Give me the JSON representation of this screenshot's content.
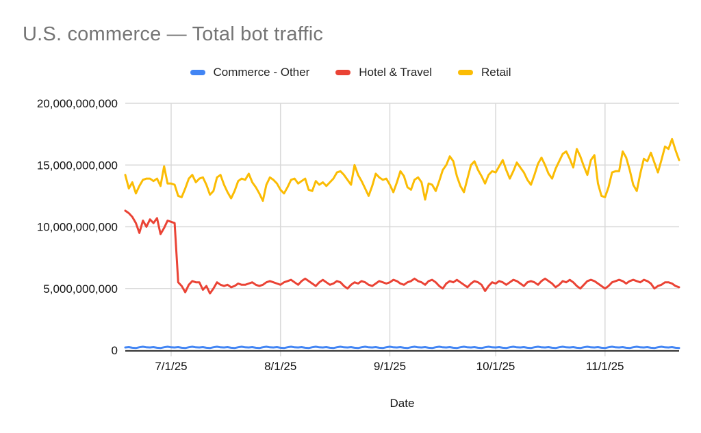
{
  "chart": {
    "title": "U.S. commerce — Total bot traffic",
    "xlabel": "Date"
  },
  "chart_data": {
    "type": "line",
    "title": "U.S. commerce — Total bot traffic",
    "xlabel": "Date",
    "ylabel": "",
    "unit": "bot requests (values stored in billions)",
    "ylim": [
      0,
      20
    ],
    "x_start": "6/18/25",
    "x_end": "11/22/25",
    "cadence": "daily",
    "grid": true,
    "legend_position": "top",
    "axis_color": "#333333",
    "grid_color": "#d9d9d9",
    "y_ticks": [
      {
        "value": 0,
        "label": "0"
      },
      {
        "value": 5,
        "label": "5,000,000,000"
      },
      {
        "value": 10,
        "label": "10,000,000,000"
      },
      {
        "value": 15,
        "label": "15,000,000,000"
      },
      {
        "value": 20,
        "label": "20,000,000,000"
      }
    ],
    "x_ticks": [
      {
        "index": 13,
        "label": "7/1/25"
      },
      {
        "index": 44,
        "label": "8/1/25"
      },
      {
        "index": 75,
        "label": "9/1/25"
      },
      {
        "index": 105,
        "label": "10/1/25"
      },
      {
        "index": 136,
        "label": "11/1/25"
      }
    ],
    "series": [
      {
        "name": "Commerce - Other",
        "color": "#4285f4",
        "values": [
          0.22,
          0.25,
          0.2,
          0.18,
          0.24,
          0.28,
          0.23,
          0.22,
          0.25,
          0.2,
          0.18,
          0.24,
          0.28,
          0.23,
          0.22,
          0.25,
          0.2,
          0.18,
          0.24,
          0.28,
          0.23,
          0.22,
          0.25,
          0.2,
          0.18,
          0.24,
          0.28,
          0.23,
          0.22,
          0.25,
          0.2,
          0.18,
          0.24,
          0.28,
          0.23,
          0.22,
          0.25,
          0.2,
          0.18,
          0.24,
          0.28,
          0.23,
          0.22,
          0.25,
          0.2,
          0.18,
          0.24,
          0.28,
          0.23,
          0.22,
          0.25,
          0.2,
          0.18,
          0.24,
          0.28,
          0.23,
          0.22,
          0.25,
          0.2,
          0.18,
          0.24,
          0.28,
          0.23,
          0.22,
          0.25,
          0.2,
          0.18,
          0.24,
          0.28,
          0.23,
          0.22,
          0.25,
          0.2,
          0.18,
          0.24,
          0.28,
          0.23,
          0.22,
          0.25,
          0.2,
          0.18,
          0.24,
          0.28,
          0.23,
          0.22,
          0.25,
          0.2,
          0.18,
          0.24,
          0.28,
          0.23,
          0.22,
          0.25,
          0.2,
          0.18,
          0.24,
          0.28,
          0.23,
          0.22,
          0.25,
          0.2,
          0.18,
          0.24,
          0.28,
          0.23,
          0.22,
          0.25,
          0.2,
          0.18,
          0.24,
          0.28,
          0.23,
          0.22,
          0.25,
          0.2,
          0.18,
          0.24,
          0.28,
          0.23,
          0.22,
          0.25,
          0.2,
          0.18,
          0.24,
          0.28,
          0.23,
          0.22,
          0.25,
          0.2,
          0.18,
          0.24,
          0.28,
          0.23,
          0.22,
          0.25,
          0.2,
          0.18,
          0.24,
          0.28,
          0.23,
          0.22,
          0.25,
          0.2,
          0.18,
          0.24,
          0.28,
          0.23,
          0.22,
          0.25,
          0.2,
          0.18,
          0.24,
          0.28,
          0.23,
          0.22,
          0.25,
          0.2,
          0.18
        ]
      },
      {
        "name": "Hotel & Travel",
        "color": "#ea4335",
        "values": [
          11.3,
          11.1,
          10.8,
          10.3,
          9.5,
          10.5,
          10.0,
          10.6,
          10.3,
          10.7,
          9.4,
          9.9,
          10.5,
          10.4,
          10.3,
          5.5,
          5.2,
          4.7,
          5.3,
          5.6,
          5.5,
          5.5,
          4.9,
          5.2,
          4.6,
          5.0,
          5.5,
          5.3,
          5.2,
          5.3,
          5.1,
          5.2,
          5.4,
          5.3,
          5.3,
          5.4,
          5.5,
          5.3,
          5.2,
          5.3,
          5.5,
          5.6,
          5.5,
          5.4,
          5.3,
          5.5,
          5.6,
          5.7,
          5.5,
          5.3,
          5.6,
          5.8,
          5.6,
          5.4,
          5.2,
          5.5,
          5.7,
          5.5,
          5.3,
          5.4,
          5.6,
          5.5,
          5.2,
          5.0,
          5.3,
          5.5,
          5.4,
          5.6,
          5.5,
          5.3,
          5.2,
          5.4,
          5.6,
          5.5,
          5.4,
          5.5,
          5.7,
          5.6,
          5.4,
          5.3,
          5.5,
          5.6,
          5.8,
          5.6,
          5.5,
          5.3,
          5.6,
          5.7,
          5.5,
          5.2,
          5.0,
          5.4,
          5.6,
          5.5,
          5.7,
          5.5,
          5.3,
          5.1,
          5.4,
          5.6,
          5.5,
          5.3,
          4.8,
          5.2,
          5.5,
          5.4,
          5.6,
          5.5,
          5.3,
          5.5,
          5.7,
          5.6,
          5.4,
          5.2,
          5.5,
          5.6,
          5.5,
          5.3,
          5.6,
          5.8,
          5.6,
          5.4,
          5.1,
          5.3,
          5.6,
          5.5,
          5.7,
          5.5,
          5.2,
          5.0,
          5.3,
          5.6,
          5.7,
          5.6,
          5.4,
          5.2,
          5.0,
          5.2,
          5.5,
          5.6,
          5.7,
          5.6,
          5.4,
          5.6,
          5.7,
          5.6,
          5.5,
          5.7,
          5.6,
          5.4,
          5.0,
          5.2,
          5.3,
          5.5,
          5.5,
          5.4,
          5.2,
          5.1
        ]
      },
      {
        "name": "Retail",
        "color": "#fbbc04",
        "values": [
          14.2,
          13.1,
          13.6,
          12.7,
          13.3,
          13.8,
          13.9,
          13.9,
          13.7,
          13.9,
          13.3,
          14.9,
          13.5,
          13.5,
          13.4,
          12.5,
          12.4,
          13.1,
          13.9,
          14.2,
          13.6,
          13.9,
          14.0,
          13.4,
          12.6,
          12.9,
          14.0,
          14.2,
          13.4,
          12.8,
          12.3,
          12.9,
          13.7,
          13.9,
          13.8,
          14.3,
          13.6,
          13.2,
          12.7,
          12.1,
          13.4,
          14.0,
          13.8,
          13.5,
          13.0,
          12.7,
          13.2,
          13.8,
          13.9,
          13.5,
          13.7,
          13.9,
          13.0,
          12.9,
          13.7,
          13.4,
          13.6,
          13.3,
          13.6,
          13.9,
          14.4,
          14.5,
          14.2,
          13.8,
          13.4,
          15.0,
          14.2,
          13.7,
          13.1,
          12.5,
          13.3,
          14.3,
          14.0,
          13.8,
          13.9,
          13.4,
          12.8,
          13.6,
          14.5,
          14.1,
          13.2,
          13.0,
          13.8,
          14.0,
          13.6,
          12.2,
          13.5,
          13.4,
          12.9,
          13.7,
          14.6,
          15.0,
          15.7,
          15.3,
          14.1,
          13.3,
          12.8,
          13.9,
          15.0,
          15.3,
          14.6,
          14.1,
          13.5,
          14.2,
          14.5,
          14.4,
          14.9,
          15.4,
          14.6,
          13.9,
          14.5,
          15.2,
          14.8,
          14.4,
          13.8,
          13.4,
          14.2,
          15.1,
          15.6,
          15.0,
          14.3,
          13.9,
          14.7,
          15.3,
          15.9,
          16.1,
          15.5,
          14.8,
          16.3,
          15.7,
          14.9,
          14.2,
          15.4,
          15.8,
          13.5,
          12.5,
          12.4,
          13.2,
          14.4,
          14.5,
          14.5,
          16.1,
          15.6,
          14.6,
          13.4,
          12.9,
          14.3,
          15.5,
          15.3,
          16.0,
          15.2,
          14.4,
          15.4,
          16.5,
          16.3,
          17.1,
          16.2,
          15.4
        ]
      }
    ]
  }
}
